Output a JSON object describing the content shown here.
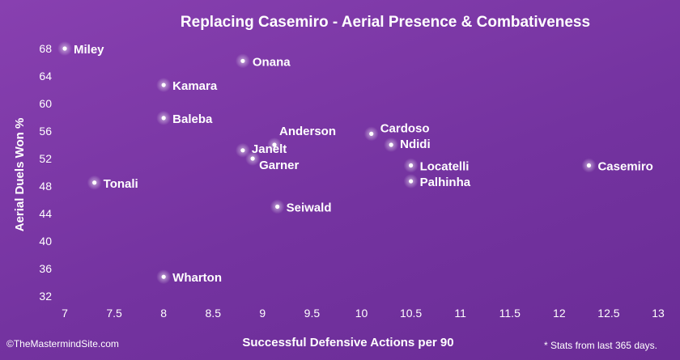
{
  "chart_data": {
    "type": "scatter",
    "title": "Replacing Casemiro - Aerial Presence & Combativeness",
    "xlabel": "Successful Defensive Actions per 90",
    "ylabel": "Aerial Duels Won %",
    "xlim": [
      7,
      13
    ],
    "ylim": [
      32,
      70
    ],
    "xticks": [
      "7",
      "7.5",
      "8",
      "8.5",
      "9",
      "9.5",
      "10",
      "10.5",
      "11",
      "11.5",
      "12",
      "12.5",
      "13"
    ],
    "yticks": [
      "32",
      "36",
      "40",
      "44",
      "48",
      "52",
      "56",
      "60",
      "64",
      "68"
    ],
    "grid": false,
    "points": [
      {
        "name": "Miley",
        "x": 7.0,
        "y": 68.0
      },
      {
        "name": "Onana",
        "x": 8.8,
        "y": 66.2
      },
      {
        "name": "Kamara",
        "x": 8.0,
        "y": 62.7
      },
      {
        "name": "Baleba",
        "x": 8.0,
        "y": 57.9
      },
      {
        "name": "Anderson",
        "x": 9.12,
        "y": 54.0
      },
      {
        "name": "Janelt",
        "x": 8.8,
        "y": 53.2
      },
      {
        "name": "Garner",
        "x": 8.9,
        "y": 52.0
      },
      {
        "name": "Cardoso",
        "x": 10.1,
        "y": 55.6
      },
      {
        "name": "Ndidi",
        "x": 10.3,
        "y": 54.0
      },
      {
        "name": "Locatelli",
        "x": 10.5,
        "y": 51.0
      },
      {
        "name": "Palhinha",
        "x": 10.5,
        "y": 48.7
      },
      {
        "name": "Casemiro",
        "x": 12.3,
        "y": 51.0
      },
      {
        "name": "Tonali",
        "x": 7.3,
        "y": 48.5
      },
      {
        "name": "Seiwald",
        "x": 9.15,
        "y": 45.0
      },
      {
        "name": "Wharton",
        "x": 8.0,
        "y": 34.8
      }
    ]
  },
  "footer": {
    "source": "©TheMastermindSite.com",
    "note": "* Stats from last 365 days."
  }
}
